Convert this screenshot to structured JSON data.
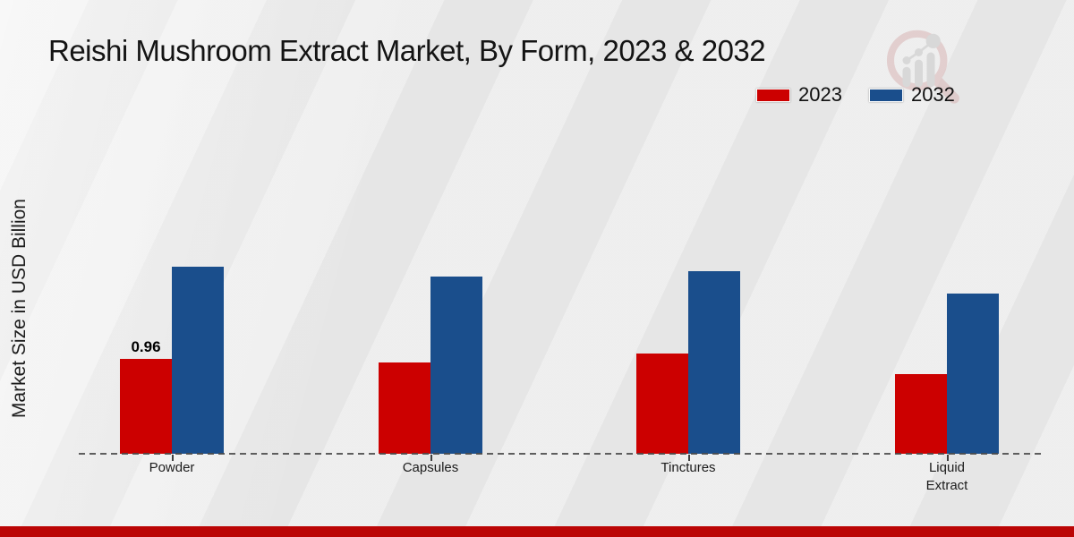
{
  "title": "Reishi Mushroom Extract Market, By Form, 2023 & 2032",
  "legend": [
    {
      "label": "2023",
      "color": "#cc0000"
    },
    {
      "label": "2032",
      "color": "#1a4e8c"
    }
  ],
  "footer": {
    "band_color": "#bb0505"
  },
  "icons": {
    "watermark": "magnifier-bar-chart-logo"
  },
  "chart_data": {
    "type": "bar",
    "title": "Reishi Mushroom Extract Market, By Form, 2023 & 2032",
    "xlabel": "",
    "ylabel": "Market Size in USD Billion",
    "categories": [
      "Powder",
      "Capsules",
      "Tinctures",
      "Liquid Extract"
    ],
    "series": [
      {
        "name": "2023",
        "color": "#cc0000",
        "values": [
          0.96,
          0.93,
          1.02,
          0.81
        ]
      },
      {
        "name": "2032",
        "color": "#1a4e8c",
        "values": [
          1.9,
          1.8,
          1.85,
          1.63
        ]
      }
    ],
    "annotations": [
      {
        "category": "Powder",
        "series": "2023",
        "text": "0.96"
      }
    ],
    "ylim": [
      0,
      2.1
    ],
    "grid": false,
    "y_ticks_visible": false,
    "legend_position": "top-right",
    "axis_style": "dashed-baseline-only",
    "baseline_color": "#4a4a4a"
  }
}
